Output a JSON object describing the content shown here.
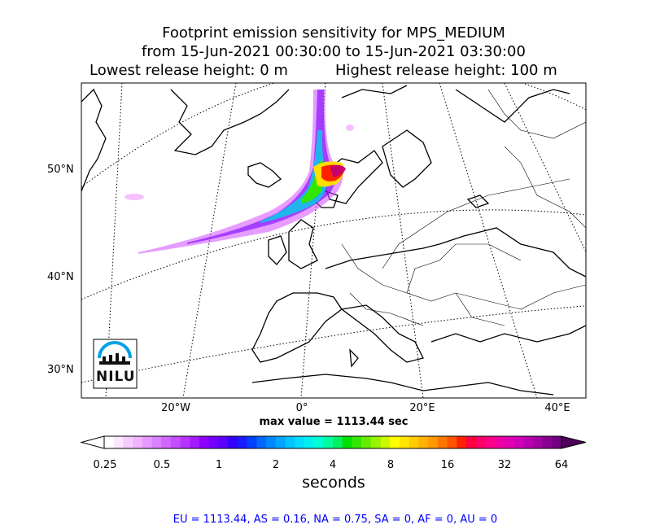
{
  "titles": {
    "line1": "Footprint emission sensitivity for MPS_MEDIUM",
    "line2": "from 15-Jun-2021 00:30:00 to 15-Jun-2021 03:30:00",
    "lowest": "Lowest release height: 0 m",
    "highest": "Highest release height: 100 m"
  },
  "lat_labels": [
    "50°N",
    "40°N",
    "30°N"
  ],
  "lon_labels": [
    "20°W",
    "0°",
    "20°E",
    "40°E"
  ],
  "max_value": "max value = 1113.44 sec",
  "colorbar": {
    "ticks": [
      "0.25",
      "0.5",
      "1",
      "2",
      "4",
      "8",
      "16",
      "32",
      "64"
    ],
    "label": "seconds"
  },
  "footer": "EU = 1113.44,  AS = 0.16,  NA = 0.75,  SA = 0,  AF = 0,  AU = 0",
  "logo": {
    "text": "NILU",
    "icon": "nilu-logo"
  },
  "colors": {
    "footer": "#0000ff"
  }
}
